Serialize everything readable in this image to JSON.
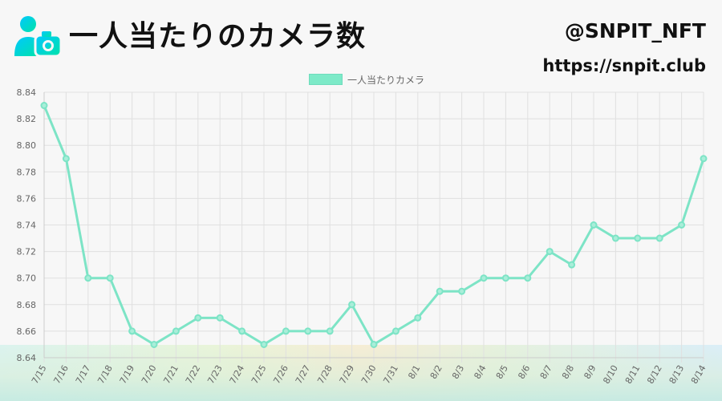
{
  "header": {
    "title": "一人当たりのカメラ数",
    "handle": "@SNPIT_NFT",
    "url": "https://snpit.club"
  },
  "icons": {
    "logo": "user-camera-icon"
  },
  "colors": {
    "line": "#7de4c6",
    "point_fill": "#a9eed9",
    "logo_gradient_start": "#00c6ff",
    "logo_gradient_end": "#00e0b0",
    "grid": "#e0e0e0",
    "background": "#f7f7f7"
  },
  "chart_data": {
    "type": "line",
    "title": "一人当たりのカメラ数",
    "xlabel": "",
    "ylabel": "",
    "ylim": [
      8.64,
      8.84
    ],
    "yticks": [
      "8.64",
      "8.66",
      "8.68",
      "8.70",
      "8.72",
      "8.74",
      "8.76",
      "8.78",
      "8.80",
      "8.82",
      "8.84"
    ],
    "grid": true,
    "legend_position": "top-center",
    "categories": [
      "7/15",
      "7/16",
      "7/17",
      "7/18",
      "7/19",
      "7/20",
      "7/21",
      "7/22",
      "7/23",
      "7/24",
      "7/25",
      "7/26",
      "7/27",
      "7/28",
      "7/29",
      "7/30",
      "7/31",
      "8/1",
      "8/2",
      "8/3",
      "8/4",
      "8/5",
      "8/6",
      "8/7",
      "8/8",
      "8/9",
      "8/10",
      "8/11",
      "8/12",
      "8/13",
      "8/14"
    ],
    "series": [
      {
        "name": "一人当たりカメラ",
        "values": [
          8.83,
          8.79,
          8.7,
          8.7,
          8.66,
          8.65,
          8.66,
          8.67,
          8.67,
          8.66,
          8.65,
          8.66,
          8.66,
          8.66,
          8.68,
          8.65,
          8.66,
          8.67,
          8.69,
          8.69,
          8.7,
          8.7,
          8.7,
          8.72,
          8.71,
          8.74,
          8.73,
          8.73,
          8.73,
          8.74,
          8.79
        ]
      }
    ]
  }
}
